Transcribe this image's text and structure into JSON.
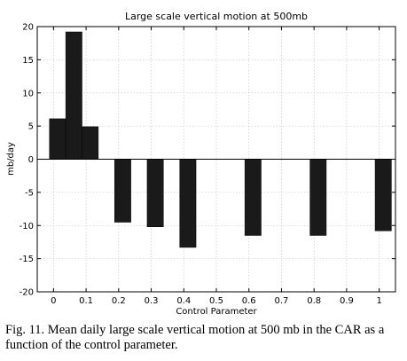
{
  "chart_data": {
    "type": "bar",
    "title": "Large scale vertical motion at 500mb",
    "xlabel": "Control Parameter",
    "ylabel": "mb/day",
    "xlim": [
      -0.05,
      1.05
    ],
    "ylim": [
      -20,
      20
    ],
    "xticks": [
      0,
      0.1,
      0.2,
      0.3,
      0.4,
      0.5,
      0.6,
      0.7,
      0.8,
      0.9,
      1
    ],
    "xtick_labels": [
      "0",
      "0.1",
      "0.2",
      "0.3",
      "0.4",
      "0.5",
      "0.6",
      "0.7",
      "0.8",
      "0.9",
      "1"
    ],
    "yticks": [
      -20,
      -15,
      -10,
      -5,
      0,
      5,
      10,
      15,
      20
    ],
    "ytick_labels": [
      "-20",
      "-15",
      "-10",
      "-5",
      "0",
      "5",
      "10",
      "15",
      "20"
    ],
    "bar_width": 0.05,
    "x": [
      0.0125,
      0.0625,
      0.1125,
      0.2125,
      0.3125,
      0.4125,
      0.6125,
      0.8125,
      1.0125
    ],
    "values": [
      6.1,
      19.2,
      4.9,
      -9.5,
      -10.2,
      -13.3,
      -11.5,
      -11.5,
      -10.8
    ],
    "grid": true,
    "bar_color": "#1a1a1a"
  },
  "caption": {
    "line1": "Fig. 11. Mean daily large scale vertical motion at 500 mb in the CAR as a",
    "line2": "function of the control parameter."
  }
}
